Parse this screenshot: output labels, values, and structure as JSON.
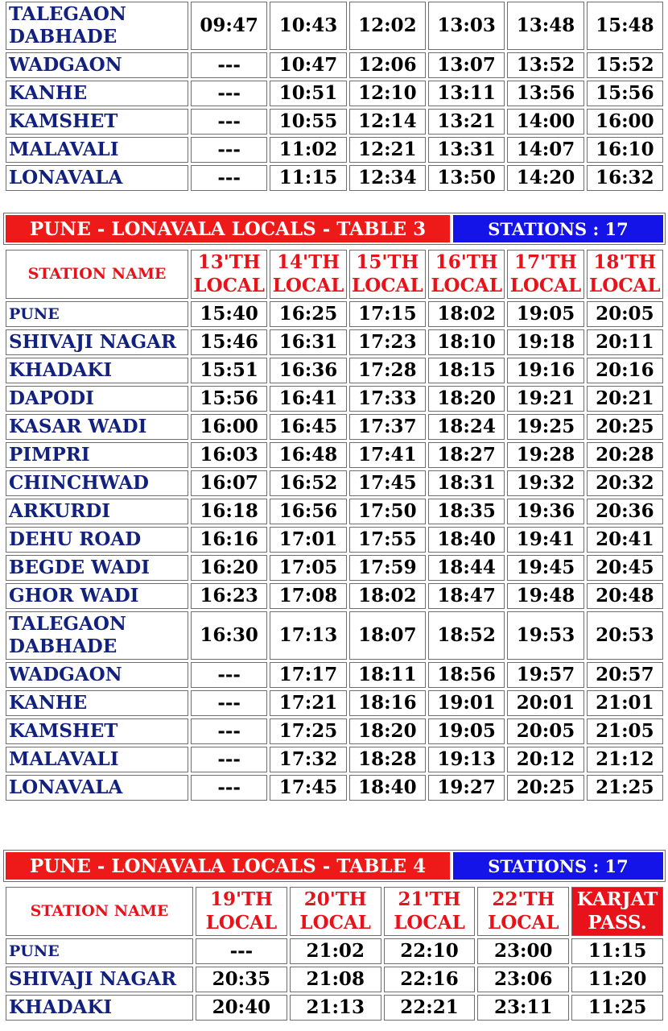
{
  "table2_tail": {
    "rows": [
      {
        "station": "TALEGAON DABHADE",
        "times": [
          "09:47",
          "10:43",
          "12:02",
          "13:03",
          "13:48",
          "15:48"
        ]
      },
      {
        "station": "WADGAON",
        "times": [
          "---",
          "10:47",
          "12:06",
          "13:07",
          "13:52",
          "15:52"
        ]
      },
      {
        "station": "KANHE",
        "times": [
          "---",
          "10:51",
          "12:10",
          "13:11",
          "13:56",
          "15:56"
        ]
      },
      {
        "station": "KAMSHET",
        "times": [
          "---",
          "10:55",
          "12:14",
          "13:21",
          "14:00",
          "16:00"
        ]
      },
      {
        "station": "MALAVALI",
        "times": [
          "---",
          "11:02",
          "12:21",
          "13:31",
          "14:07",
          "16:10"
        ]
      },
      {
        "station": "LONAVALA",
        "times": [
          "---",
          "11:15",
          "12:34",
          "13:50",
          "14:20",
          "16:32"
        ]
      }
    ]
  },
  "table3": {
    "banner_title": "PUNE - LONAVALA LOCALS - TABLE 3",
    "banner_stations": "STATIONS : 17",
    "station_header": "STATION NAME",
    "columns": [
      "13'TH LOCAL",
      "14'TH LOCAL",
      "15'TH LOCAL",
      "16'TH LOCAL",
      "17'TH LOCAL",
      "18'TH LOCAL"
    ],
    "rows": [
      {
        "station": "PUNE",
        "times": [
          "15:40",
          "16:25",
          "17:15",
          "18:02",
          "19:05",
          "20:05"
        ]
      },
      {
        "station": "SHIVAJI NAGAR",
        "times": [
          "15:46",
          "16:31",
          "17:23",
          "18:10",
          "19:18",
          "20:11"
        ]
      },
      {
        "station": "KHADAKI",
        "times": [
          "15:51",
          "16:36",
          "17:28",
          "18:15",
          "19:16",
          "20:16"
        ]
      },
      {
        "station": "DAPODI",
        "times": [
          "15:56",
          "16:41",
          "17:33",
          "18:20",
          "19:21",
          "20:21"
        ]
      },
      {
        "station": "KASAR WADI",
        "times": [
          "16:00",
          "16:45",
          "17:37",
          "18:24",
          "19:25",
          "20:25"
        ]
      },
      {
        "station": "PIMPRI",
        "times": [
          "16:03",
          "16:48",
          "17:41",
          "18:27",
          "19:28",
          "20:28"
        ]
      },
      {
        "station": "CHINCHWAD",
        "times": [
          "16:07",
          "16:52",
          "17:45",
          "18:31",
          "19:32",
          "20:32"
        ]
      },
      {
        "station": "ARKURDI",
        "times": [
          "16:18",
          "16:56",
          "17:50",
          "18:35",
          "19:36",
          "20:36"
        ]
      },
      {
        "station": "DEHU ROAD",
        "times": [
          "16:16",
          "17:01",
          "17:55",
          "18:40",
          "19:41",
          "20:41"
        ]
      },
      {
        "station": "BEGDE WADI",
        "times": [
          "16:20",
          "17:05",
          "17:59",
          "18:44",
          "19:45",
          "20:45"
        ]
      },
      {
        "station": "GHOR WADI",
        "times": [
          "16:23",
          "17:08",
          "18:02",
          "18:47",
          "19:48",
          "20:48"
        ]
      },
      {
        "station": "TALEGAON DABHADE",
        "times": [
          "16:30",
          "17:13",
          "18:07",
          "18:52",
          "19:53",
          "20:53"
        ]
      },
      {
        "station": "WADGAON",
        "times": [
          "---",
          "17:17",
          "18:11",
          "18:56",
          "19:57",
          "20:57"
        ]
      },
      {
        "station": "KANHE",
        "times": [
          "---",
          "17:21",
          "18:16",
          "19:01",
          "20:01",
          "21:01"
        ]
      },
      {
        "station": "KAMSHET",
        "times": [
          "---",
          "17:25",
          "18:20",
          "19:05",
          "20:05",
          "21:05"
        ]
      },
      {
        "station": "MALAVALI",
        "times": [
          "---",
          "17:32",
          "18:28",
          "19:13",
          "20:12",
          "21:12"
        ]
      },
      {
        "station": "LONAVALA",
        "times": [
          "---",
          "17:45",
          "18:40",
          "19:27",
          "20:25",
          "21:25"
        ]
      }
    ]
  },
  "table4": {
    "banner_title": "PUNE - LONAVALA LOCALS - TABLE 4",
    "banner_stations": "STATIONS : 17",
    "station_header": "STATION NAME",
    "columns": [
      "19'TH LOCAL",
      "20'TH LOCAL",
      "21'TH LOCAL",
      "22'TH LOCAL",
      "KARJAT PASS."
    ],
    "rows": [
      {
        "station": "PUNE",
        "times": [
          "---",
          "21:02",
          "22:10",
          "23:00",
          "11:15"
        ]
      },
      {
        "station": "SHIVAJI NAGAR",
        "times": [
          "20:35",
          "21:08",
          "22:16",
          "23:06",
          "11:20"
        ]
      },
      {
        "station": "KHADAKI",
        "times": [
          "20:40",
          "21:13",
          "22:21",
          "23:11",
          "11:25"
        ]
      }
    ]
  },
  "colors": {
    "station_text": "#12217d",
    "header_red": "#e8121a",
    "banner_red": "#ee1a1a",
    "banner_blue": "#1414e8"
  }
}
